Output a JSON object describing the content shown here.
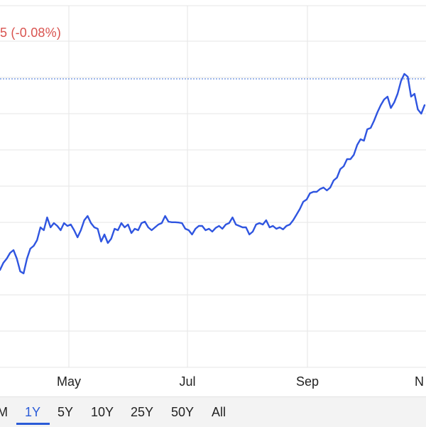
{
  "header": {
    "change_text": "5 (-0.08%)"
  },
  "range_selector": {
    "items": [
      {
        "label": "M",
        "active": false
      },
      {
        "label": "1Y",
        "active": true
      },
      {
        "label": "5Y",
        "active": false
      },
      {
        "label": "10Y",
        "active": false
      },
      {
        "label": "25Y",
        "active": false
      },
      {
        "label": "50Y",
        "active": false
      },
      {
        "label": "All",
        "active": false
      }
    ]
  },
  "colors": {
    "line": "#2f55e0",
    "grid": "#e6e6e6",
    "reference_line": "#3b6fd6",
    "change_negative": "#d9534f",
    "active_range": "#2a5bd7"
  },
  "chart_data": {
    "type": "line",
    "x_tick_labels": [
      "May",
      "Jul",
      "Sep",
      "N"
    ],
    "grid": true,
    "reference_line": true,
    "series": [
      {
        "values": [
          42.0,
          44.5,
          46.0,
          48.0,
          49.0,
          46.0,
          41.5,
          40.8,
          46.0,
          49.5,
          50.5,
          52.5,
          57.0,
          56.0,
          60.5,
          57.0,
          58.5,
          57.5,
          56.0,
          58.5,
          57.5,
          58.0,
          56.0,
          53.5,
          56.0,
          59.5,
          61.0,
          58.5,
          57.0,
          56.5,
          52.0,
          54.5,
          51.5,
          53.0,
          56.5,
          56.0,
          58.5,
          57.0,
          58.0,
          55.0,
          56.5,
          56.0,
          58.5,
          59.0,
          57.0,
          56.0,
          57.0,
          58.0,
          58.5,
          61.0,
          59.0,
          58.8,
          58.8,
          58.7,
          58.5,
          56.5,
          56.0,
          54.5,
          56.5,
          57.5,
          57.5,
          56.0,
          56.5,
          55.5,
          56.8,
          57.5,
          56.5,
          58.0,
          58.5,
          60.5,
          58.0,
          57.5,
          57.0,
          57.0,
          54.5,
          55.5,
          58.0,
          58.5,
          58.0,
          59.5,
          57.0,
          57.5,
          56.5,
          57.0,
          56.3,
          57.5,
          58.0,
          59.5,
          61.5,
          63.5,
          66.0,
          66.8,
          69.0,
          69.5,
          69.5,
          70.5,
          71.0,
          70.0,
          71.0,
          73.5,
          74.5,
          77.5,
          78.5,
          81.0,
          81.0,
          82.5,
          86.0,
          88.0,
          87.5,
          91.5,
          92.0,
          94.5,
          97.5,
          100.0,
          102.0,
          103.0,
          99.0,
          101.0,
          104.0,
          108.5,
          111.0,
          110.0,
          103.0,
          104.0,
          98.5,
          97.0,
          100.0
        ]
      }
    ],
    "ylim": [
      20,
      112
    ],
    "reference_value": 108.0
  }
}
